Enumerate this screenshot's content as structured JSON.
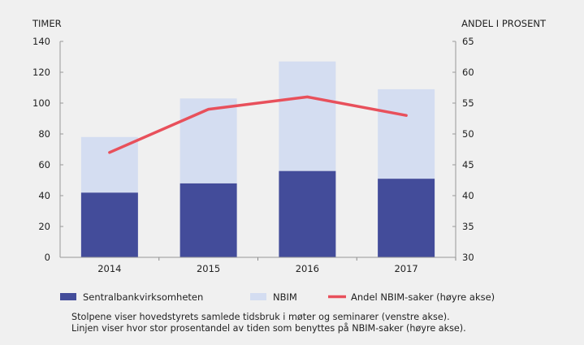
{
  "chart_data": {
    "type": "bar",
    "stacked": true,
    "categories": [
      "2014",
      "2015",
      "2016",
      "2017"
    ],
    "series": [
      {
        "name": "Sentralbankvirksomheten",
        "type": "bar",
        "axis": "left",
        "color": "#434c9a",
        "values": [
          42,
          48,
          56,
          51
        ]
      },
      {
        "name": "NBIM",
        "type": "bar",
        "axis": "left",
        "color": "#d4ddf1",
        "values": [
          36,
          55,
          71,
          58
        ]
      },
      {
        "name": "Andel NBIM-saker (høyre akse)",
        "type": "line",
        "axis": "right",
        "color": "#e8505b",
        "values": [
          47,
          54,
          56,
          53
        ]
      }
    ],
    "ylabel": "TIMER",
    "y2label": "ANDEL I PROSENT",
    "ylim": [
      0,
      140
    ],
    "y2lim": [
      30,
      65
    ],
    "yticks": [
      "0",
      "20",
      "40",
      "60",
      "80",
      "100",
      "120",
      "140"
    ],
    "y2ticks": [
      "30",
      "35",
      "40",
      "45",
      "50",
      "55",
      "60",
      "65"
    ],
    "grid": false,
    "legend": "bottom"
  },
  "notes": [
    "Stolpene viser hovedstyrets samlede tidsbruk i møter og seminarer (venstre akse).",
    "Linjen viser hvor stor prosentandel av tiden som benyttes på NBIM-saker (høyre akse)."
  ]
}
